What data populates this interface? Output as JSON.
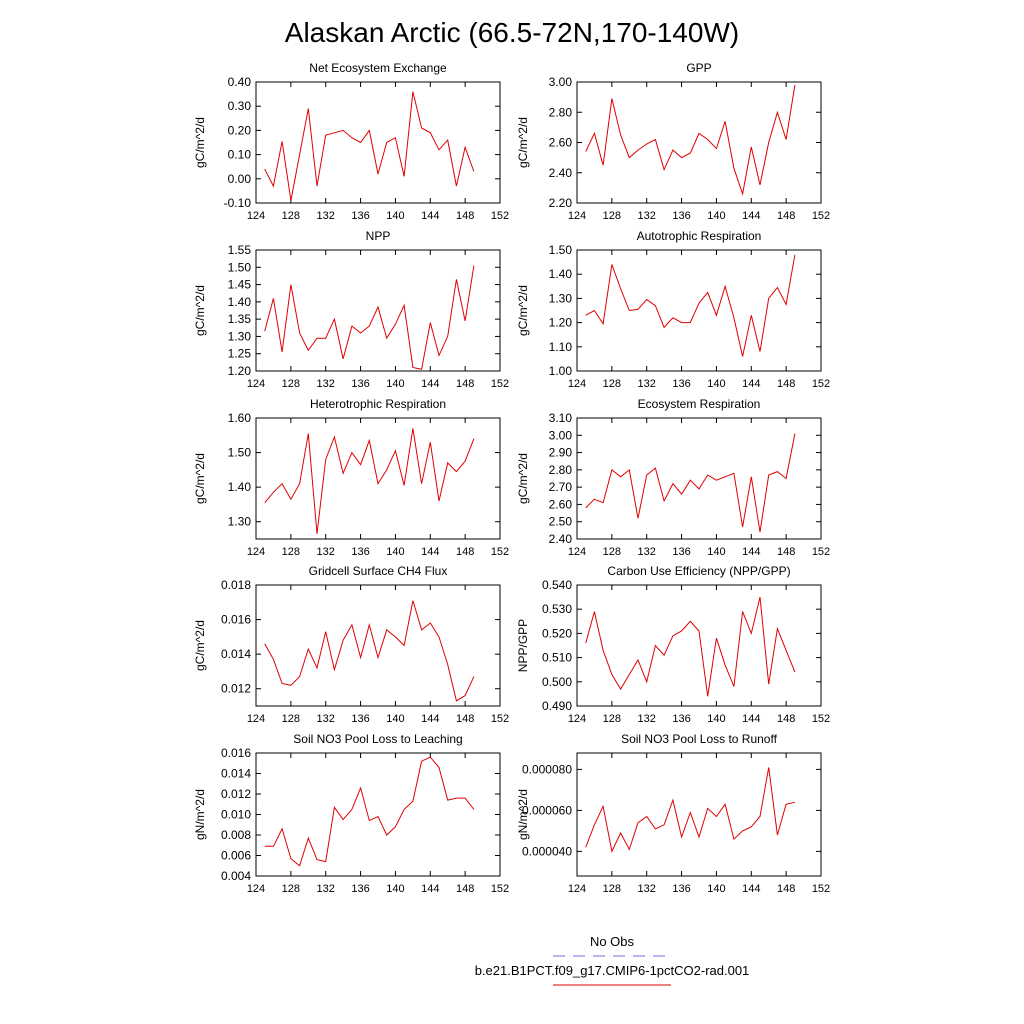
{
  "figure": {
    "title": "Alaskan Arctic (66.5-72N,170-140W)",
    "legend": [
      {
        "label": "No Obs",
        "color": "#7070e0",
        "style": "dashed"
      },
      {
        "label": "b.e21.B1PCT.f09_g17.CMIP6-1pctCO2-rad.001",
        "color": "#e00000",
        "style": "solid"
      }
    ]
  },
  "chart_data": [
    {
      "type": "line",
      "title": "Net Ecosystem Exchange",
      "xlabel": "",
      "ylabel": "gC/m^2/d",
      "xlim": [
        124,
        152
      ],
      "xticks": [
        "124",
        "128",
        "132",
        "136",
        "140",
        "144",
        "148",
        "152"
      ],
      "ylim": [
        -0.1,
        0.4
      ],
      "yticks": [
        "-0.10",
        "0.00",
        "0.10",
        "0.20",
        "0.30",
        "0.40"
      ],
      "color": "#e00000",
      "x": [
        125,
        126,
        127,
        128,
        129,
        130,
        131,
        132,
        133,
        134,
        135,
        136,
        137,
        138,
        139,
        140,
        141,
        142,
        143,
        144,
        145,
        146,
        147,
        148,
        149
      ],
      "y": [
        0.04,
        -0.03,
        0.155,
        -0.09,
        0.1,
        0.29,
        -0.03,
        0.18,
        0.19,
        0.2,
        0.17,
        0.15,
        0.2,
        0.02,
        0.15,
        0.17,
        0.01,
        0.36,
        0.21,
        0.19,
        0.12,
        0.16,
        -0.03,
        0.13,
        0.03
      ]
    },
    {
      "type": "line",
      "title": "GPP",
      "xlabel": "",
      "ylabel": "gC/m^2/d",
      "xlim": [
        124,
        152
      ],
      "xticks": [
        "124",
        "128",
        "132",
        "136",
        "140",
        "144",
        "148",
        "152"
      ],
      "ylim": [
        2.2,
        3.0
      ],
      "yticks": [
        "2.20",
        "2.40",
        "2.60",
        "2.80",
        "3.00"
      ],
      "color": "#e00000",
      "x": [
        125,
        126,
        127,
        128,
        129,
        130,
        131,
        132,
        133,
        134,
        135,
        136,
        137,
        138,
        139,
        140,
        141,
        142,
        143,
        144,
        145,
        146,
        147,
        148,
        149
      ],
      "y": [
        2.54,
        2.66,
        2.45,
        2.89,
        2.65,
        2.5,
        2.55,
        2.59,
        2.62,
        2.42,
        2.55,
        2.5,
        2.53,
        2.66,
        2.62,
        2.56,
        2.74,
        2.43,
        2.26,
        2.57,
        2.32,
        2.6,
        2.8,
        2.62,
        2.98
      ]
    },
    {
      "type": "line",
      "title": "NPP",
      "xlabel": "",
      "ylabel": "gC/m^2/d",
      "xlim": [
        124,
        152
      ],
      "xticks": [
        "124",
        "128",
        "132",
        "136",
        "140",
        "144",
        "148",
        "152"
      ],
      "ylim": [
        1.2,
        1.55
      ],
      "yticks": [
        "1.20",
        "1.25",
        "1.30",
        "1.35",
        "1.40",
        "1.45",
        "1.50",
        "1.55"
      ],
      "color": "#e00000",
      "x": [
        125,
        126,
        127,
        128,
        129,
        130,
        131,
        132,
        133,
        134,
        135,
        136,
        137,
        138,
        139,
        140,
        141,
        142,
        143,
        144,
        145,
        146,
        147,
        148,
        149
      ],
      "y": [
        1.315,
        1.41,
        1.255,
        1.45,
        1.31,
        1.26,
        1.295,
        1.295,
        1.35,
        1.235,
        1.33,
        1.31,
        1.33,
        1.385,
        1.295,
        1.335,
        1.39,
        1.21,
        1.205,
        1.34,
        1.245,
        1.3,
        1.465,
        1.345,
        1.505
      ]
    },
    {
      "type": "line",
      "title": "Autotrophic Respiration",
      "xlabel": "",
      "ylabel": "gC/m^2/d",
      "xlim": [
        124,
        152
      ],
      "xticks": [
        "124",
        "128",
        "132",
        "136",
        "140",
        "144",
        "148",
        "152"
      ],
      "ylim": [
        1.0,
        1.5
      ],
      "yticks": [
        "1.00",
        "1.10",
        "1.20",
        "1.30",
        "1.40",
        "1.50"
      ],
      "color": "#e00000",
      "x": [
        125,
        126,
        127,
        128,
        129,
        130,
        131,
        132,
        133,
        134,
        135,
        136,
        137,
        138,
        139,
        140,
        141,
        142,
        143,
        144,
        145,
        146,
        147,
        148,
        149
      ],
      "y": [
        1.23,
        1.25,
        1.195,
        1.44,
        1.34,
        1.25,
        1.255,
        1.295,
        1.27,
        1.18,
        1.22,
        1.2,
        1.2,
        1.28,
        1.325,
        1.23,
        1.35,
        1.22,
        1.06,
        1.23,
        1.08,
        1.3,
        1.345,
        1.275,
        1.48
      ]
    },
    {
      "type": "line",
      "title": "Heterotrophic Respiration",
      "xlabel": "",
      "ylabel": "gC/m^2/d",
      "xlim": [
        124,
        152
      ],
      "xticks": [
        "124",
        "128",
        "132",
        "136",
        "140",
        "144",
        "148",
        "152"
      ],
      "ylim": [
        1.25,
        1.6
      ],
      "yticks": [
        "1.30",
        "1.40",
        "1.50",
        "1.60"
      ],
      "color": "#e00000",
      "x": [
        125,
        126,
        127,
        128,
        129,
        130,
        131,
        132,
        133,
        134,
        135,
        136,
        137,
        138,
        139,
        140,
        141,
        142,
        143,
        144,
        145,
        146,
        147,
        148,
        149
      ],
      "y": [
        1.355,
        1.385,
        1.41,
        1.365,
        1.41,
        1.555,
        1.265,
        1.48,
        1.545,
        1.44,
        1.5,
        1.465,
        1.535,
        1.41,
        1.45,
        1.505,
        1.405,
        1.57,
        1.41,
        1.53,
        1.36,
        1.47,
        1.445,
        1.475,
        1.54
      ]
    },
    {
      "type": "line",
      "title": "Ecosystem Respiration",
      "xlabel": "",
      "ylabel": "gC/m^2/d",
      "xlim": [
        124,
        152
      ],
      "xticks": [
        "124",
        "128",
        "132",
        "136",
        "140",
        "144",
        "148",
        "152"
      ],
      "ylim": [
        2.4,
        3.1
      ],
      "yticks": [
        "2.40",
        "2.50",
        "2.60",
        "2.70",
        "2.80",
        "2.90",
        "3.00",
        "3.10"
      ],
      "color": "#e00000",
      "x": [
        125,
        126,
        127,
        128,
        129,
        130,
        131,
        132,
        133,
        134,
        135,
        136,
        137,
        138,
        139,
        140,
        141,
        142,
        143,
        144,
        145,
        146,
        147,
        148,
        149
      ],
      "y": [
        2.58,
        2.63,
        2.61,
        2.8,
        2.76,
        2.8,
        2.52,
        2.77,
        2.81,
        2.62,
        2.72,
        2.66,
        2.74,
        2.69,
        2.77,
        2.74,
        2.76,
        2.78,
        2.47,
        2.76,
        2.44,
        2.77,
        2.79,
        2.75,
        3.01
      ]
    },
    {
      "type": "line",
      "title": "Gridcell Surface CH4 Flux",
      "xlabel": "",
      "ylabel": "gC/m^2/d",
      "xlim": [
        124,
        152
      ],
      "xticks": [
        "124",
        "128",
        "132",
        "136",
        "140",
        "144",
        "148",
        "152"
      ],
      "ylim": [
        0.011,
        0.018
      ],
      "yticks": [
        "0.012",
        "0.014",
        "0.016",
        "0.018"
      ],
      "color": "#e00000",
      "x": [
        125,
        126,
        127,
        128,
        129,
        130,
        131,
        132,
        133,
        134,
        135,
        136,
        137,
        138,
        139,
        140,
        141,
        142,
        143,
        144,
        145,
        146,
        147,
        148,
        149
      ],
      "y": [
        0.0146,
        0.0137,
        0.0123,
        0.0122,
        0.0127,
        0.0143,
        0.0132,
        0.0153,
        0.0131,
        0.0148,
        0.0157,
        0.0138,
        0.0157,
        0.0138,
        0.0154,
        0.015,
        0.0145,
        0.0171,
        0.0154,
        0.0158,
        0.015,
        0.0134,
        0.0113,
        0.0116,
        0.0127
      ]
    },
    {
      "type": "line",
      "title": "Carbon Use Efficiency (NPP/GPP)",
      "xlabel": "",
      "ylabel": "NPP/GPP",
      "xlim": [
        124,
        152
      ],
      "xticks": [
        "124",
        "128",
        "132",
        "136",
        "140",
        "144",
        "148",
        "152"
      ],
      "ylim": [
        0.49,
        0.54
      ],
      "yticks": [
        "0.490",
        "0.500",
        "0.510",
        "0.520",
        "0.530",
        "0.540"
      ],
      "color": "#e00000",
      "x": [
        125,
        126,
        127,
        128,
        129,
        130,
        131,
        132,
        133,
        134,
        135,
        136,
        137,
        138,
        139,
        140,
        141,
        142,
        143,
        144,
        145,
        146,
        147,
        148,
        149
      ],
      "y": [
        0.516,
        0.529,
        0.513,
        0.503,
        0.497,
        0.503,
        0.509,
        0.5,
        0.515,
        0.511,
        0.519,
        0.521,
        0.525,
        0.521,
        0.494,
        0.518,
        0.507,
        0.498,
        0.529,
        0.52,
        0.535,
        0.499,
        0.522,
        0.513,
        0.504
      ]
    },
    {
      "type": "line",
      "title": "Soil NO3 Pool Loss to Leaching",
      "xlabel": "",
      "ylabel": "gN/m^2/d",
      "xlim": [
        124,
        152
      ],
      "xticks": [
        "124",
        "128",
        "132",
        "136",
        "140",
        "144",
        "148",
        "152"
      ],
      "ylim": [
        0.004,
        0.016
      ],
      "yticks": [
        "0.004",
        "0.006",
        "0.008",
        "0.010",
        "0.012",
        "0.014",
        "0.016"
      ],
      "color": "#e00000",
      "x": [
        125,
        126,
        127,
        128,
        129,
        130,
        131,
        132,
        133,
        134,
        135,
        136,
        137,
        138,
        139,
        140,
        141,
        142,
        143,
        144,
        145,
        146,
        147,
        148,
        149
      ],
      "y": [
        0.0069,
        0.0069,
        0.0086,
        0.0057,
        0.005,
        0.0077,
        0.0056,
        0.0054,
        0.0107,
        0.0095,
        0.0105,
        0.0126,
        0.0094,
        0.0098,
        0.008,
        0.0088,
        0.0105,
        0.0113,
        0.0152,
        0.0156,
        0.0146,
        0.0114,
        0.0116,
        0.0116,
        0.0105
      ]
    },
    {
      "type": "line",
      "title": "Soil NO3 Pool Loss to Runoff",
      "xlabel": "",
      "ylabel": "gN/m^2/d",
      "xlim": [
        124,
        152
      ],
      "xticks": [
        "124",
        "128",
        "132",
        "136",
        "140",
        "144",
        "148",
        "152"
      ],
      "ylim": [
        2.8e-05,
        8.8e-05
      ],
      "yticks": [
        "0.000040",
        "0.000060",
        "0.000080"
      ],
      "color": "#e00000",
      "x": [
        125,
        126,
        127,
        128,
        129,
        130,
        131,
        132,
        133,
        134,
        135,
        136,
        137,
        138,
        139,
        140,
        141,
        142,
        143,
        144,
        145,
        146,
        147,
        148,
        149
      ],
      "y": [
        4.2e-05,
        5.3e-05,
        6.2e-05,
        4e-05,
        4.9e-05,
        4.1e-05,
        5.4e-05,
        5.7e-05,
        5.1e-05,
        5.3e-05,
        6.5e-05,
        4.7e-05,
        5.9e-05,
        4.7e-05,
        6.1e-05,
        5.7e-05,
        6.3e-05,
        4.6e-05,
        5e-05,
        5.2e-05,
        5.7e-05,
        8.1e-05,
        4.8e-05,
        6.3e-05,
        6.4e-05
      ]
    }
  ]
}
